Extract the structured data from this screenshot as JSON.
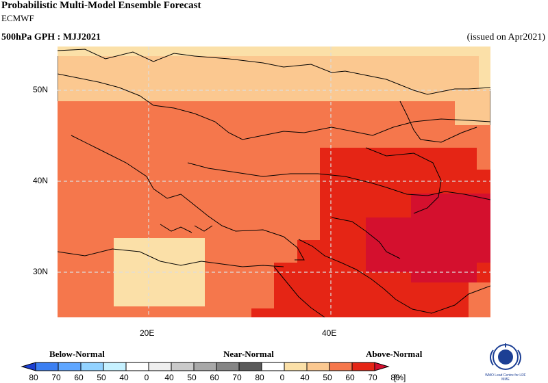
{
  "header": {
    "title": "Probabilistic Multi-Model Ensemble Forecast",
    "model": "ECMWF",
    "variable": "500hPa GPH : MJJ2021",
    "issued": "(issued on Apr2021)"
  },
  "map": {
    "lat_labels": [
      "50N",
      "40N",
      "30N"
    ],
    "lon_labels": [
      "20E",
      "40E"
    ],
    "category_colors": {
      "near40": "#fbe0a8",
      "above40": "#fbe0a8",
      "above50": "#fbc890",
      "above60": "#f5774c",
      "above70": "#e52515",
      "above80": "#d4102e"
    }
  },
  "legend": {
    "below_label": "Below-Normal",
    "near_label": "Near-Normal",
    "above_label": "Above-Normal",
    "ticks": [
      "80",
      "70",
      "60",
      "50",
      "40",
      "0",
      "40",
      "50",
      "60",
      "70",
      "80",
      "0",
      "40",
      "50",
      "60",
      "70",
      "80"
    ],
    "unit": "[%]",
    "colors": [
      "#1c3fd2",
      "#3b7ff2",
      "#5fa6ff",
      "#92d2ff",
      "#c6f1ff",
      "#ffffff",
      "#eeeeee",
      "#cacaca",
      "#a8a8a8",
      "#858585",
      "#5a5a5a",
      "#ffffff",
      "#fbe0a8",
      "#fbc890",
      "#f5774c",
      "#e52515",
      "#d4102e"
    ]
  },
  "logo": {
    "caption": "WMO Lead Centre for LRF MME"
  }
}
